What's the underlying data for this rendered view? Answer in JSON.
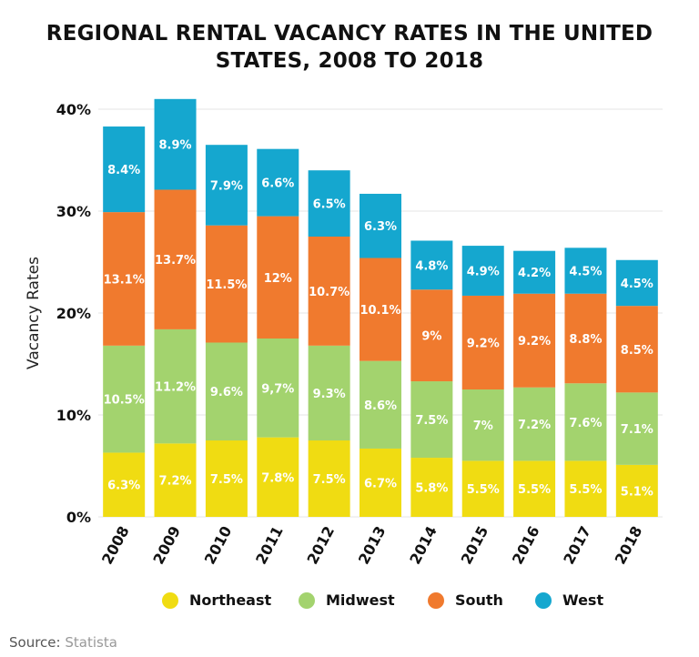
{
  "title": "REGIONAL RENTAL VACANCY RATES IN THE UNITED STATES, 2008 TO 2018",
  "source": {
    "label": "Source:",
    "brand": "Statista"
  },
  "colors": {
    "Northeast": "#f0dc12",
    "Midwest": "#a3d36e",
    "South": "#f07a2e",
    "West": "#15a7cf"
  },
  "chart_data": {
    "type": "bar",
    "stacked": true,
    "categories": [
      "2008",
      "2009",
      "2010",
      "2011",
      "2012",
      "2013",
      "2014",
      "2015",
      "2016",
      "2017",
      "2018"
    ],
    "series": [
      {
        "name": "Northeast",
        "values": [
          6.3,
          7.2,
          7.5,
          7.8,
          7.5,
          6.7,
          5.8,
          5.5,
          5.5,
          5.5,
          5.1
        ],
        "labels": [
          "6.3%",
          "7.2%",
          "7.5%",
          "7.8%",
          "7.5%",
          "6.7%",
          "5.8%",
          "5.5%",
          "5.5%",
          "5.5%",
          "5.1%"
        ]
      },
      {
        "name": "Midwest",
        "values": [
          10.5,
          11.2,
          9.6,
          9.7,
          9.3,
          8.6,
          7.5,
          7,
          7.2,
          7.6,
          7.1
        ],
        "labels": [
          "10.5%",
          "11.2%",
          "9.6%",
          "9,7%",
          "9.3%",
          "8.6%",
          "7.5%",
          "7%",
          "7.2%",
          "7.6%",
          "7.1%"
        ]
      },
      {
        "name": "South",
        "values": [
          13.1,
          13.7,
          11.5,
          12,
          10.7,
          10.1,
          9,
          9.2,
          9.2,
          8.8,
          8.5
        ],
        "labels": [
          "13.1%",
          "13.7%",
          "11.5%",
          "12%",
          "10.7%",
          "10.1%",
          "9%",
          "9.2%",
          "9.2%",
          "8.8%",
          "8.5%"
        ]
      },
      {
        "name": "West",
        "values": [
          8.4,
          8.9,
          7.9,
          6.6,
          6.5,
          6.3,
          4.8,
          4.9,
          4.2,
          4.5,
          4.5
        ],
        "labels": [
          "8.4%",
          "8.9%",
          "7.9%",
          "6.6%",
          "6.5%",
          "6.3%",
          "4.8%",
          "4.9%",
          "4.2%",
          "4.5%",
          "4.5%"
        ]
      }
    ],
    "ylabel": "Vacancy Rates",
    "yticks": [
      0,
      10,
      20,
      30,
      40
    ],
    "ytick_labels": [
      "0%",
      "10%",
      "20%",
      "30%",
      "40%"
    ],
    "ylim": [
      0,
      40
    ],
    "grid": true,
    "legend": "bottom"
  }
}
